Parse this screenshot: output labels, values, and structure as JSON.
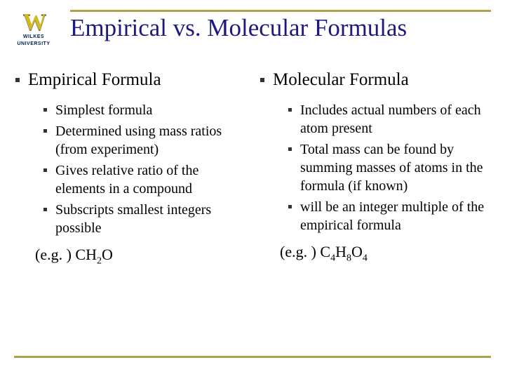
{
  "logo": {
    "mark": "W",
    "line1": "WILKES",
    "line2": "UNIVERSITY"
  },
  "title": "Empirical vs. Molecular Formulas",
  "columns": [
    {
      "heading": "Empirical Formula",
      "items": [
        "Simplest formula",
        "Determined using mass ratios (from experiment)",
        "Gives relative ratio of the elements in a compound",
        "Subscripts smallest integers possible"
      ],
      "example_prefix": "(e.g. ) CH",
      "example_formula": [
        {
          "base": "CH",
          "sub": "2"
        },
        {
          "base": "O",
          "sub": ""
        }
      ]
    },
    {
      "heading": "Molecular Formula",
      "items": [
        "Includes actual numbers of each atom present",
        "Total mass can be found by summing masses of atoms in the formula (if known)",
        "will be an integer multiple of the empirical formula"
      ],
      "example_formula": [
        {
          "base": "C",
          "sub": "4"
        },
        {
          "base": "H",
          "sub": "8"
        },
        {
          "base": "O",
          "sub": "4"
        }
      ]
    }
  ],
  "example_label": "(e.g. ) ",
  "colors": {
    "title": "#1a1a80",
    "rule": "#b0a050",
    "logo_gold": "#d4b820",
    "logo_navy": "#00205b"
  }
}
